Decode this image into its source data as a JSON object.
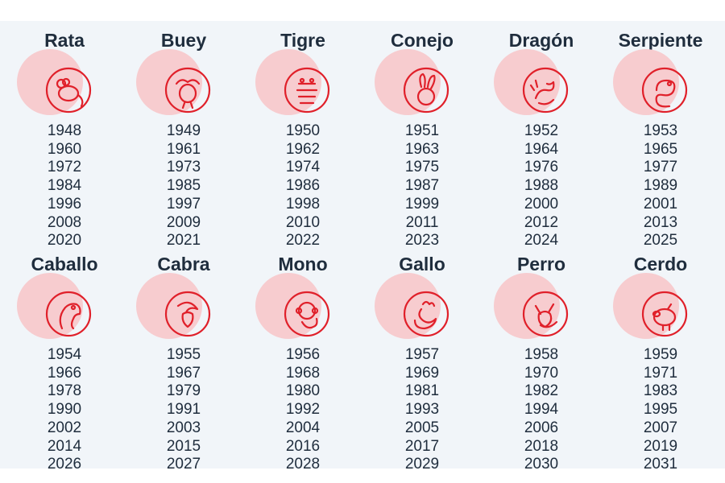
{
  "colors": {
    "background": "#f1f5f9",
    "text": "#1f2d3d",
    "accent": "#e0202a",
    "blob": "#f7cccf"
  },
  "signs": [
    {
      "name": "Rata",
      "icon": "rat-icon",
      "years": [
        "1948",
        "1960",
        "1972",
        "1984",
        "1996",
        "2008",
        "2020"
      ]
    },
    {
      "name": "Buey",
      "icon": "ox-icon",
      "years": [
        "1949",
        "1961",
        "1973",
        "1985",
        "1997",
        "2009",
        "2021"
      ]
    },
    {
      "name": "Tigre",
      "icon": "tiger-icon",
      "years": [
        "1950",
        "1962",
        "1974",
        "1986",
        "1998",
        "2010",
        "2022"
      ]
    },
    {
      "name": "Conejo",
      "icon": "rabbit-icon",
      "years": [
        "1951",
        "1963",
        "1975",
        "1987",
        "1999",
        "2011",
        "2023"
      ]
    },
    {
      "name": "Dragón",
      "icon": "dragon-icon",
      "years": [
        "1952",
        "1964",
        "1976",
        "1988",
        "2000",
        "2012",
        "2024"
      ]
    },
    {
      "name": "Serpiente",
      "icon": "snake-icon",
      "years": [
        "1953",
        "1965",
        "1977",
        "1989",
        "2001",
        "2013",
        "2025"
      ]
    },
    {
      "name": "Caballo",
      "icon": "horse-icon",
      "years": [
        "1954",
        "1966",
        "1978",
        "1990",
        "2002",
        "2014",
        "2026"
      ]
    },
    {
      "name": "Cabra",
      "icon": "goat-icon",
      "years": [
        "1955",
        "1967",
        "1979",
        "1991",
        "2003",
        "2015",
        "2027"
      ]
    },
    {
      "name": "Mono",
      "icon": "monkey-icon",
      "years": [
        "1956",
        "1968",
        "1980",
        "1992",
        "2004",
        "2016",
        "2028"
      ]
    },
    {
      "name": "Gallo",
      "icon": "rooster-icon",
      "years": [
        "1957",
        "1969",
        "1981",
        "1993",
        "2005",
        "2017",
        "2029"
      ]
    },
    {
      "name": "Perro",
      "icon": "dog-icon",
      "years": [
        "1958",
        "1970",
        "1982",
        "1994",
        "2006",
        "2018",
        "2030"
      ]
    },
    {
      "name": "Cerdo",
      "icon": "pig-icon",
      "years": [
        "1959",
        "1971",
        "1983",
        "1995",
        "2007",
        "2019",
        "2031"
      ]
    }
  ]
}
